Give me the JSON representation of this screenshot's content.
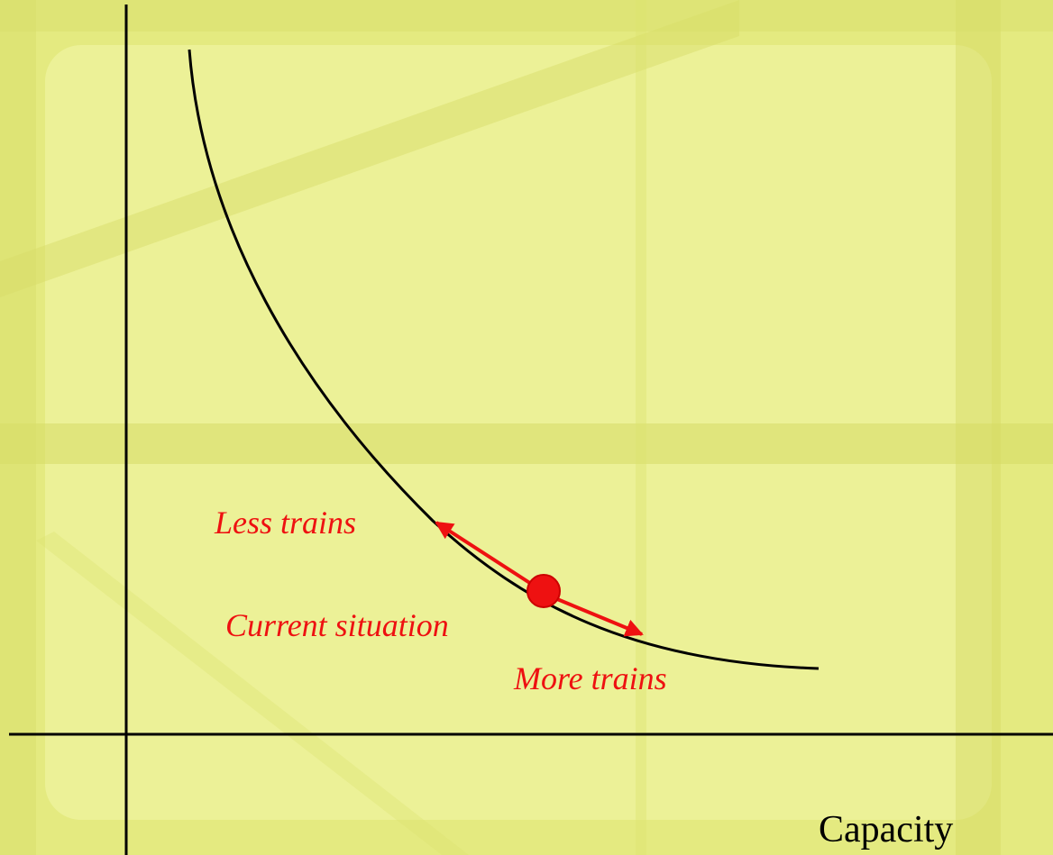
{
  "labels": {
    "less": "Less trains",
    "current": "Current situation",
    "more": "More trains"
  },
  "x_axis": {
    "label": "Capacity"
  }
}
